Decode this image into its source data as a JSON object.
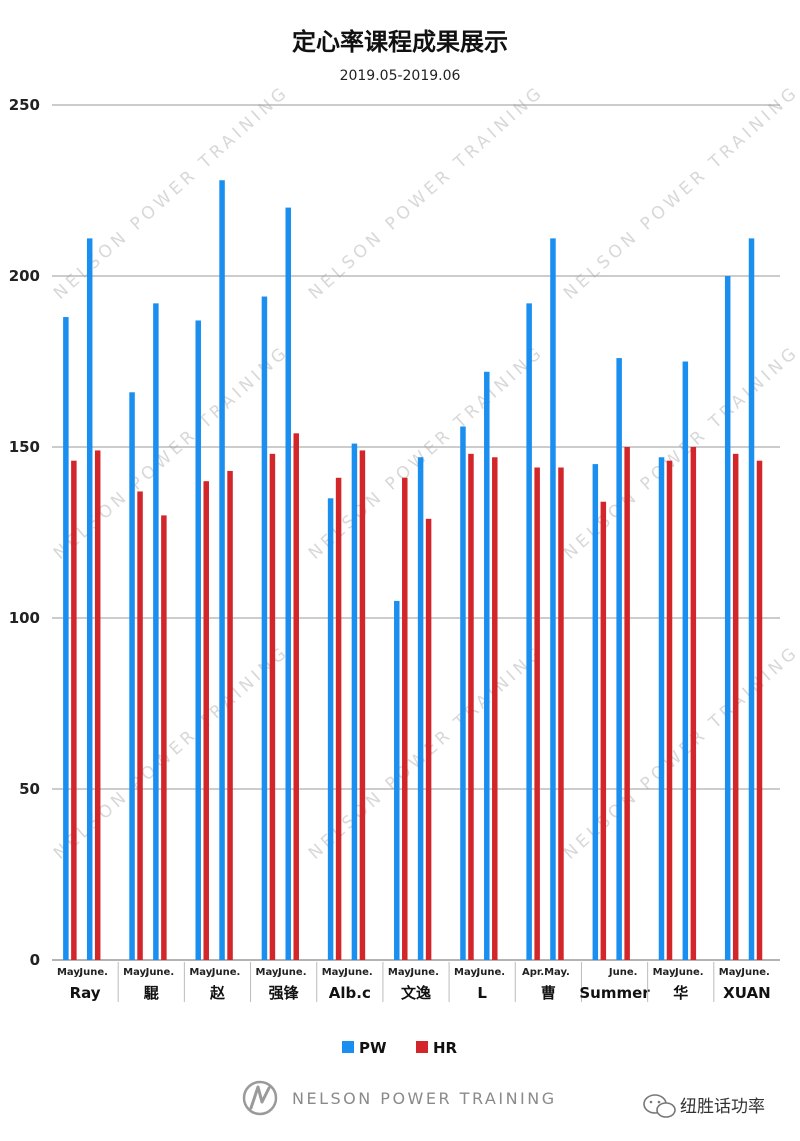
{
  "watermark_text": "NELSON POWER TRAINING",
  "footer": {
    "brand": "NELSON POWER TRAINING",
    "wechat_name": "纽胜话功率"
  },
  "colors": {
    "PW": "#1a8ff0",
    "HR": "#d3262b",
    "grid": "#9a9a9a"
  },
  "chart_data": {
    "type": "bar",
    "title": "定心率课程成果展示",
    "subtitle": "2019.05-2019.06",
    "ylim": [
      0,
      250
    ],
    "yticks": [
      0,
      50,
      100,
      150,
      200,
      250
    ],
    "grid": true,
    "legend_position": "bottom",
    "series_names": [
      "PW",
      "HR"
    ],
    "groups": [
      {
        "name": "Ray",
        "periods": [
          {
            "label": "May.",
            "PW": 188,
            "HR": 146
          },
          {
            "label": "June.",
            "PW": 211,
            "HR": 149
          }
        ]
      },
      {
        "name": "騉",
        "periods": [
          {
            "label": "May.",
            "PW": 166,
            "HR": 137
          },
          {
            "label": "June.",
            "PW": 192,
            "HR": 130
          }
        ]
      },
      {
        "name": "赵",
        "periods": [
          {
            "label": "May.",
            "PW": 187,
            "HR": 140
          },
          {
            "label": "June.",
            "PW": 228,
            "HR": 143
          }
        ]
      },
      {
        "name": "强锋",
        "periods": [
          {
            "label": "May.",
            "PW": 194,
            "HR": 148
          },
          {
            "label": "June.",
            "PW": 220,
            "HR": 154
          }
        ]
      },
      {
        "name": "Alb.c",
        "periods": [
          {
            "label": "May.",
            "PW": 135,
            "HR": 141
          },
          {
            "label": "June.",
            "PW": 151,
            "HR": 149
          }
        ]
      },
      {
        "name": "文逸",
        "periods": [
          {
            "label": "May.",
            "PW": 105,
            "HR": 141
          },
          {
            "label": "June.",
            "PW": 147,
            "HR": 129
          }
        ]
      },
      {
        "name": "L",
        "periods": [
          {
            "label": "May.",
            "PW": 156,
            "HR": 148
          },
          {
            "label": "June.",
            "PW": 172,
            "HR": 147
          }
        ]
      },
      {
        "name": "曹",
        "periods": [
          {
            "label": "Apr.",
            "PW": 192,
            "HR": 144
          },
          {
            "label": "May.",
            "PW": 211,
            "HR": 144
          }
        ]
      },
      {
        "name": "Summer",
        "periods": [
          {
            "label": "",
            "PW": 145,
            "HR": 134
          },
          {
            "label": "June.",
            "PW": 176,
            "HR": 150
          }
        ]
      },
      {
        "name": "华",
        "periods": [
          {
            "label": "May.",
            "PW": 147,
            "HR": 146
          },
          {
            "label": "June.",
            "PW": 175,
            "HR": 150
          }
        ]
      },
      {
        "name": "XUAN",
        "periods": [
          {
            "label": "May.",
            "PW": 200,
            "HR": 148
          },
          {
            "label": "June.",
            "PW": 211,
            "HR": 146
          }
        ]
      }
    ]
  }
}
